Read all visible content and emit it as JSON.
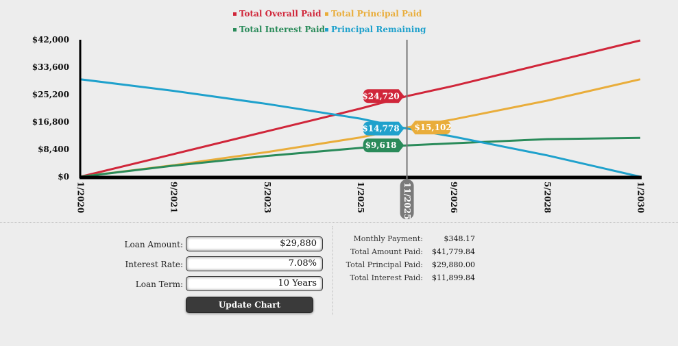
{
  "chart_data": {
    "type": "line",
    "x": [
      "1/2020",
      "9/2021",
      "5/2023",
      "1/2025",
      "9/2026",
      "5/2028",
      "1/2030"
    ],
    "x_start": "1/2020",
    "x_end": "1/2030",
    "x_tick_labels": [
      "1/2020",
      "9/2021",
      "5/2023",
      "1/2025",
      "9/2026",
      "5/2028",
      "1/2030"
    ],
    "y_tick_labels": [
      "$0",
      "$8,400",
      "$16,800",
      "$25,200",
      "$33,600",
      "$42,000"
    ],
    "ylim": [
      0,
      42000
    ],
    "grid": false,
    "legend_position": "top",
    "series": [
      {
        "name": "Total Overall Paid",
        "color": "#d0263a",
        "x": [
          "1/2020",
          "9/2021",
          "5/2023",
          "1/2025",
          "11/2025",
          "9/2026",
          "5/2028",
          "1/2030"
        ],
        "values": [
          0,
          6960,
          13930,
          20890,
          24720,
          27860,
          34820,
          41780
        ]
      },
      {
        "name": "Total Principal Paid",
        "color": "#e9ad3b",
        "x": [
          "1/2020",
          "9/2021",
          "5/2023",
          "1/2025",
          "11/2025",
          "9/2026",
          "5/2028",
          "1/2030"
        ],
        "values": [
          0,
          3550,
          7550,
          12050,
          15102,
          17600,
          23300,
          29880
        ]
      },
      {
        "name": "Total Interest Paid",
        "color": "#2a8b5a",
        "x": [
          "1/2020",
          "9/2021",
          "5/2023",
          "1/2025",
          "11/2025",
          "9/2026",
          "5/2028",
          "1/2030"
        ],
        "values": [
          0,
          3410,
          6380,
          8840,
          9618,
          10260,
          11520,
          11900
        ]
      },
      {
        "name": "Principal Remaining",
        "color": "#1fa1cc",
        "x": [
          "1/2020",
          "9/2021",
          "5/2023",
          "1/2025",
          "11/2025",
          "9/2026",
          "5/2028",
          "1/2030"
        ],
        "values": [
          29880,
          26330,
          22330,
          17830,
          14778,
          12280,
          6580,
          0
        ]
      }
    ],
    "marker": {
      "x": "11/2025",
      "labels": [
        {
          "series": 0,
          "text": "$24,720",
          "side": "left"
        },
        {
          "series": 3,
          "text": "$14,778",
          "side": "left"
        },
        {
          "series": 1,
          "text": "$15,102",
          "side": "right"
        },
        {
          "series": 2,
          "text": "$9,618",
          "side": "left"
        }
      ]
    }
  },
  "form": {
    "loan_amount_label": "Loan Amount:",
    "loan_amount_value": "$29,880",
    "interest_rate_label": "Interest Rate:",
    "interest_rate_value": "7.08%",
    "loan_term_label": "Loan Term:",
    "loan_term_value": "10 Years",
    "update_button": "Update Chart"
  },
  "summary": {
    "monthly_payment_label": "Monthly Payment:",
    "monthly_payment_value": "$348.17",
    "total_amount_label": "Total Amount Paid:",
    "total_amount_value": "$41,779.84",
    "total_principal_label": "Total Principal Paid:",
    "total_principal_value": "$29,880.00",
    "total_interest_label": "Total Interest Paid:",
    "total_interest_value": "$11,899.84"
  }
}
